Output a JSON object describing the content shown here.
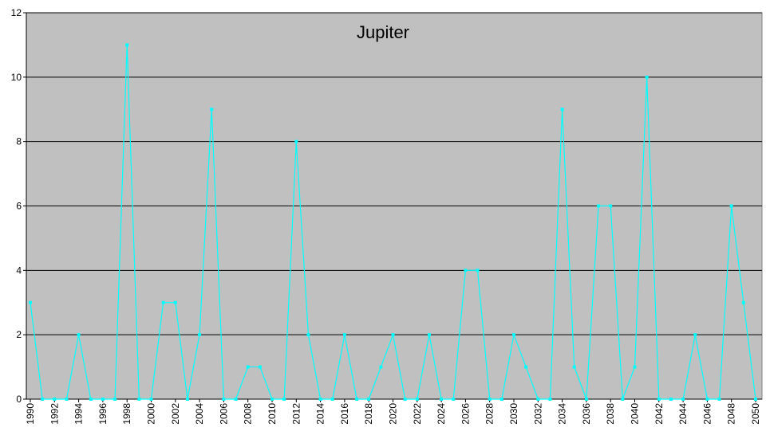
{
  "chart_data": {
    "type": "line",
    "title": "Jupiter",
    "x": [
      1990,
      1991,
      1992,
      1993,
      1994,
      1995,
      1996,
      1997,
      1998,
      1999,
      2000,
      2001,
      2002,
      2003,
      2004,
      2005,
      2006,
      2007,
      2008,
      2009,
      2010,
      2011,
      2012,
      2013,
      2014,
      2015,
      2016,
      2017,
      2018,
      2019,
      2020,
      2021,
      2022,
      2023,
      2024,
      2025,
      2026,
      2027,
      2028,
      2029,
      2030,
      2031,
      2032,
      2033,
      2034,
      2035,
      2036,
      2037,
      2038,
      2039,
      2040,
      2041,
      2042,
      2043,
      2044,
      2045,
      2046,
      2047,
      2048,
      2049,
      2050
    ],
    "values": [
      3,
      0,
      0,
      0,
      2,
      0,
      0,
      0,
      11,
      0,
      0,
      3,
      3,
      0,
      2,
      9,
      0,
      0,
      1,
      1,
      0,
      0,
      8,
      2,
      0,
      0,
      2,
      0,
      0,
      1,
      2,
      0,
      0,
      2,
      0,
      0,
      4,
      4,
      0,
      0,
      2,
      1,
      0,
      0,
      9,
      1,
      0,
      6,
      6,
      0,
      1,
      10,
      0,
      0,
      0,
      2,
      0,
      0,
      6,
      3,
      0
    ],
    "color": "#00ffff",
    "xlim": [
      1990,
      2050
    ],
    "xticks": [
      1990,
      1992,
      1994,
      1996,
      1998,
      2000,
      2002,
      2004,
      2006,
      2008,
      2010,
      2012,
      2014,
      2016,
      2018,
      2020,
      2022,
      2024,
      2026,
      2028,
      2030,
      2032,
      2034,
      2036,
      2038,
      2040,
      2042,
      2044,
      2046,
      2048,
      2050
    ],
    "ylim": [
      0,
      12
    ],
    "yticks": [
      0,
      2,
      4,
      6,
      8,
      10,
      12
    ],
    "grid": true
  }
}
